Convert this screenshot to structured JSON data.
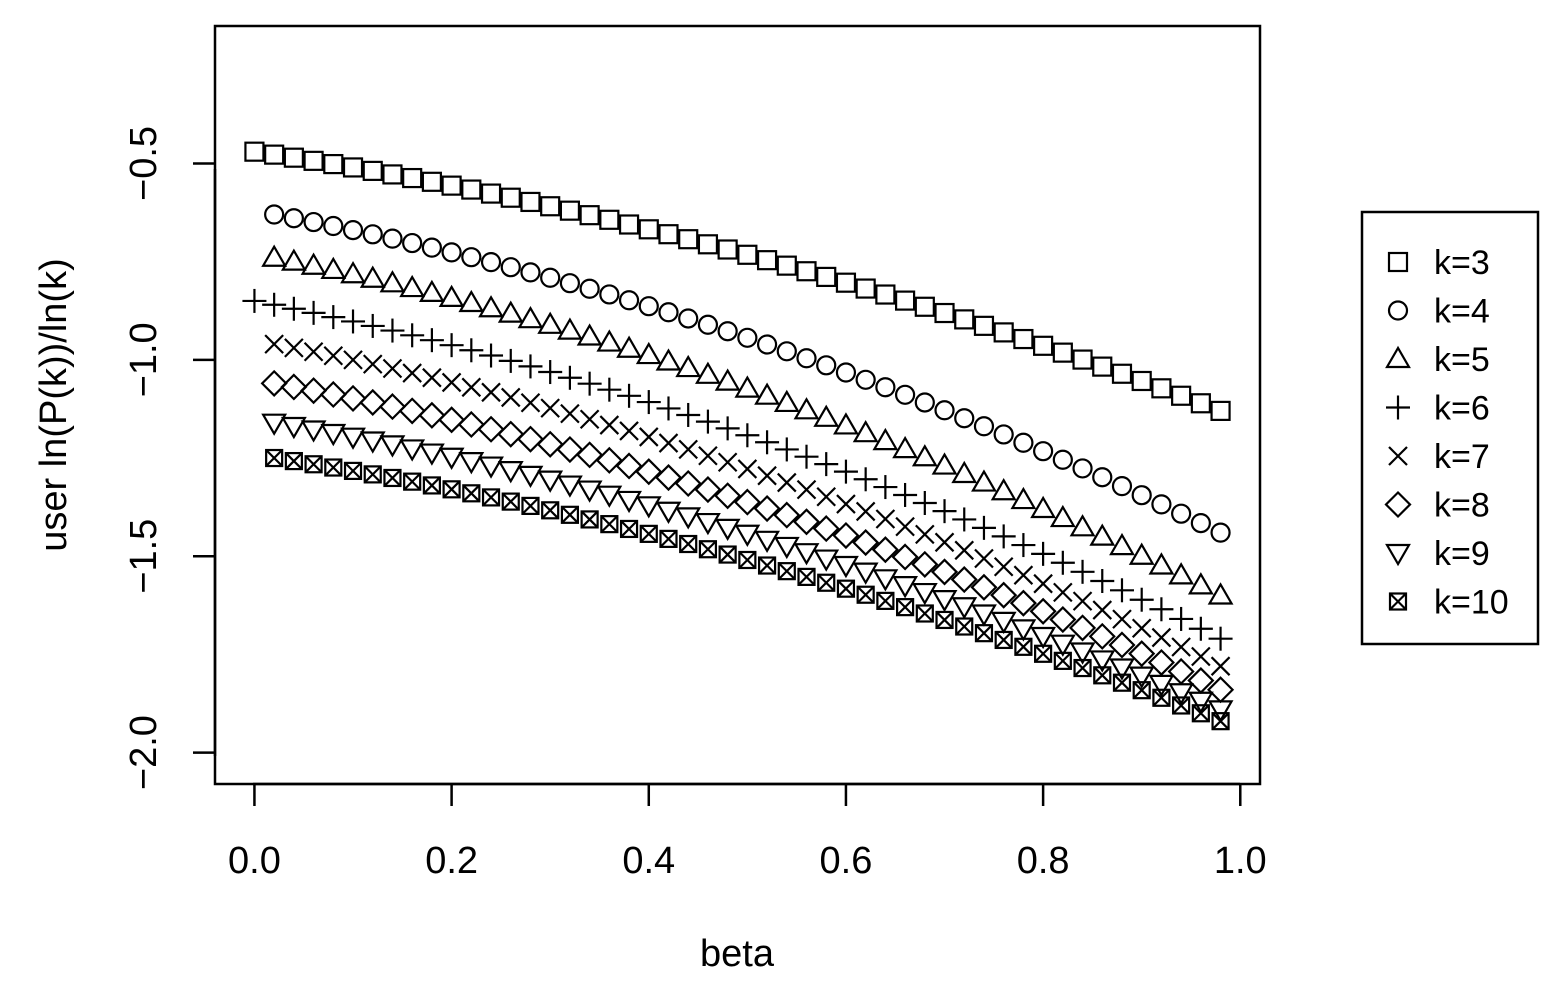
{
  "chart_data": {
    "type": "scatter",
    "title": "",
    "xlabel": "beta",
    "ylabel": "user ln(P(k))/ln(k)",
    "xlim": [
      -0.04,
      1.02
    ],
    "ylim": [
      -2.08,
      -0.15
    ],
    "xticks": [
      0.0,
      0.2,
      0.4,
      0.6,
      0.8,
      1.0
    ],
    "xtick_labels": [
      "0.0",
      "0.2",
      "0.4",
      "0.6",
      "0.8",
      "1.0"
    ],
    "yticks": [
      -2.0,
      -1.5,
      -1.0,
      -0.5
    ],
    "ytick_labels": [
      "-2.0",
      "-1.5",
      "-1.0",
      "-0.5"
    ],
    "grid": false,
    "legend_position": "right",
    "color": "#000000",
    "series": [
      {
        "name": "k=3",
        "marker": "square",
        "x_start": 0.0,
        "x_end": 0.98,
        "x_step": 0.02,
        "y_start": -0.47,
        "y_end": -1.13
      },
      {
        "name": "k=4",
        "marker": "circle",
        "x_start": 0.02,
        "x_end": 0.98,
        "x_step": 0.02,
        "y_start": -0.63,
        "y_end": -1.44
      },
      {
        "name": "k=5",
        "marker": "triangle-up",
        "x_start": 0.02,
        "x_end": 0.98,
        "x_step": 0.02,
        "y_start": -0.74,
        "y_end": -1.6
      },
      {
        "name": "k=6",
        "marker": "plus",
        "x_start": 0.0,
        "x_end": 0.98,
        "x_step": 0.02,
        "y_start": -0.85,
        "y_end": -1.71
      },
      {
        "name": "k=7",
        "marker": "cross",
        "x_start": 0.02,
        "x_end": 0.98,
        "x_step": 0.02,
        "y_start": -0.96,
        "y_end": -1.78
      },
      {
        "name": "k=8",
        "marker": "diamond",
        "x_start": 0.02,
        "x_end": 0.98,
        "x_step": 0.02,
        "y_start": -1.06,
        "y_end": -1.84
      },
      {
        "name": "k=9",
        "marker": "triangle-down",
        "x_start": 0.02,
        "x_end": 0.98,
        "x_step": 0.02,
        "y_start": -1.16,
        "y_end": -1.89
      },
      {
        "name": "k=10",
        "marker": "square-x",
        "x_start": 0.02,
        "x_end": 0.98,
        "x_step": 0.02,
        "y_start": -1.25,
        "y_end": -1.92
      }
    ]
  }
}
